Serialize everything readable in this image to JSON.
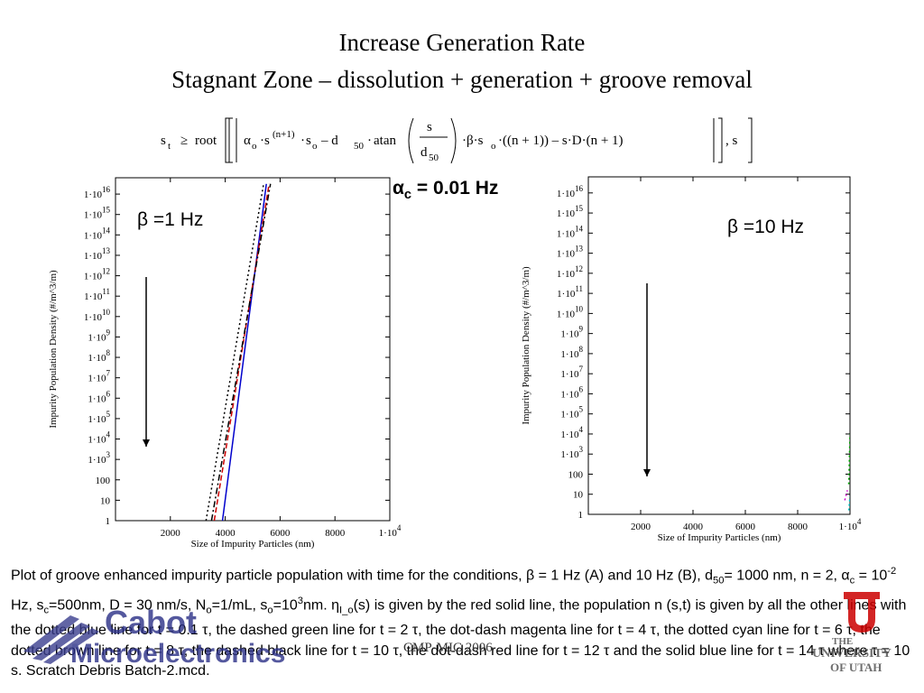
{
  "title_line1": "Increase Generation Rate",
  "title_line2": "Stagnant Zone – dissolution + generation + groove removal",
  "formula": {
    "lhs": "s",
    "lhs_sub": "t",
    "ge": "≥",
    "root": "root",
    "alpha": "α",
    "alpha_sub": "o",
    "s_sup": "(n+1)",
    "so": "s",
    "so_sub": "o",
    "minus1": "– d",
    "d_sub": "50",
    "atan": "atan",
    "frac_num": "s",
    "frac_den": "d",
    "frac_den_sub": "50",
    "tail": "·β·s",
    "tail_sub": "o",
    "tail2": "·((n + 1)) – s·D·(n + 1)",
    "end": ", s"
  },
  "alpha_label": "α",
  "alpha_sub": "c",
  "alpha_value": " = 0.01 Hz",
  "beta_a": "β =1 Hz",
  "beta_b": "β =10 Hz",
  "caption": {
    "p1": "Plot of groove enhanced impurity particle population with time for the conditions, β = 1 Hz (A) and 10 Hz (B), d",
    "p1_sub": "50",
    "p2": "= 1000 nm, n = 2, α",
    "p2_sub": "c",
    "p3": " = 10",
    "p3_sup": "-2",
    "p4": " Hz, s",
    "p4_sub": "c",
    "p5": "=500nm, D = 30 nm/s, N",
    "p5_sub": "o",
    "p6": "=1/mL, s",
    "p6_sub": "o",
    "p7": "=10",
    "p7_sup": "3",
    "p8": "nm.  η",
    "p8_sub": "I_o",
    "p9": "(s) is given by the red solid line, the population n (s,t) is given by all the other lines with the dotted blue line for t = 0.1 τ, the dashed green line for t = 2 τ, the dot-dash magenta line for t = 4 τ, the dotted cyan line for t = 6 τ, the dotted brown line for t = 8 τ, the dashed black line for t = 10 τ, the dot-dash red line for t = 12 τ and the solid blue line for t = 14 τ where τ = 10 s.  Scratch Debris Batch-2.mcd."
  },
  "footer_center": "CMP-MIC 2006",
  "logo_cabot_1": "Cabot",
  "logo_cabot_2": "Microelectronics",
  "logo_utah_1": "THE",
  "logo_utah_2": "UNIVERSITY",
  "logo_utah_3": "OF UTAH",
  "chart_data": [
    {
      "type": "line",
      "panel": "A",
      "xlabel": "Size of Impurity Particles (nm)",
      "ylabel": "Impurity Population Density (#/m^3/m)",
      "x_ticks": [
        "2000",
        "4000",
        "6000",
        "8000",
        "1·10^4"
      ],
      "y_ticks": [
        "1",
        "10",
        "100",
        "1·10^3",
        "1·10^4",
        "1·10^5",
        "1·10^6",
        "1·10^7",
        "1·10^8",
        "1·10^9",
        "1·10^10",
        "1·10^11",
        "1·10^12",
        "1·10^13",
        "1·10^14",
        "1·10^15",
        "1·10^16"
      ],
      "xlim": [
        0,
        10000
      ],
      "ylog10_lim": [
        0,
        16.8
      ],
      "yscale": "log",
      "series": [
        {
          "color": "#0000cc",
          "style": "solid",
          "x": [
            3900,
            5500
          ],
          "ylog": [
            0,
            16.5
          ]
        },
        {
          "color": "#cc0000",
          "style": "dash",
          "x": [
            3600,
            5600
          ],
          "ylog": [
            0,
            16.5
          ]
        },
        {
          "color": "#000000",
          "style": "dot",
          "x": [
            3300,
            5400
          ],
          "ylog": [
            0,
            16.5
          ]
        },
        {
          "color": "#000000",
          "style": "dashdot",
          "x": [
            3500,
            5650
          ],
          "ylog": [
            0,
            16.5
          ]
        }
      ]
    },
    {
      "type": "line",
      "panel": "B",
      "xlabel": "Size of Impurity Particles (nm)",
      "ylabel": "Impurity Population Density (#/m^3/m)",
      "x_ticks": [
        "2000",
        "4000",
        "6000",
        "8000",
        "1·10^4"
      ],
      "y_ticks": [
        "1",
        "10",
        "100",
        "1·10^3",
        "1·10^4",
        "1·10^5",
        "1·10^6",
        "1·10^7",
        "1·10^8",
        "1·10^9",
        "1·10^10",
        "1·10^11",
        "1·10^12",
        "1·10^13",
        "1·10^14",
        "1·10^15",
        "1·10^16"
      ],
      "xlim": [
        0,
        10000
      ],
      "ylog10_lim": [
        0,
        16.8
      ],
      "yscale": "log",
      "series": [
        {
          "color": "#cc00cc",
          "style": "dot",
          "x": [
            9800,
            9900
          ],
          "ylog": [
            0.7,
            1.2
          ]
        },
        {
          "color": "#00aa00",
          "style": "dot",
          "x": [
            9950,
            10000
          ],
          "ylog": [
            1.5,
            4
          ]
        },
        {
          "color": "#00cccc",
          "style": "dot",
          "x": [
            9950,
            10000
          ],
          "ylog": [
            0.2,
            0.9
          ]
        }
      ]
    }
  ]
}
